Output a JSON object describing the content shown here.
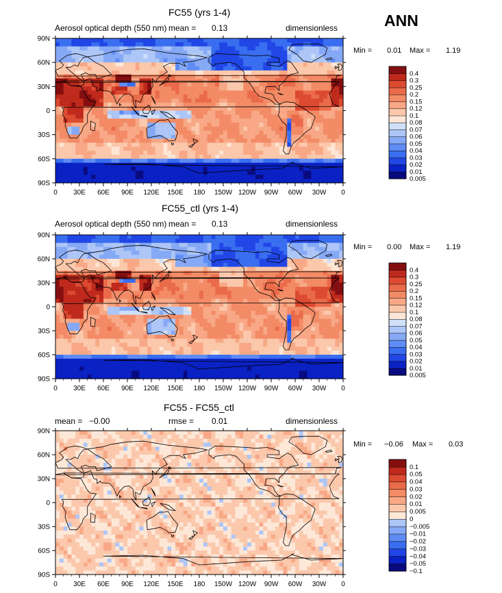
{
  "header": {
    "season": "ANN"
  },
  "colors": {
    "land": "#000000",
    "rampA": [
      "#0a0a80",
      "#0a22c4",
      "#2146e6",
      "#3a6ef0",
      "#5f8cf4",
      "#86a9f6",
      "#adc6f7",
      "#d0e0f8",
      "#fde6d6",
      "#fbc8ac",
      "#f8a886",
      "#f28b66",
      "#ea6b4a",
      "#dc4a31",
      "#bf2a1d",
      "#850f10"
    ],
    "rampD": [
      "#0a0a80",
      "#0a22c4",
      "#2146e6",
      "#3a6ef0",
      "#5f8cf4",
      "#86a9f6",
      "#adc6f7",
      "#fde8d8",
      "#fbc8ac",
      "#f8a886",
      "#f28b66",
      "#ea6b4a",
      "#dc4a31",
      "#bf2a1d",
      "#850f10"
    ]
  },
  "chart_data": [
    {
      "type": "heatmap",
      "title": "FC55 (yrs 1-4)",
      "left_label": "Aerosol optical depth (550 nm)",
      "mean_label": "mean =",
      "mean_value": "0.13",
      "units": "dimensionless",
      "min_label": "Min =",
      "min_value": "0.01",
      "max_label": "Max =",
      "max_value": "1.19",
      "x_ticks": [
        "0",
        "30E",
        "60E",
        "90E",
        "120E",
        "150E",
        "180",
        "150W",
        "120W",
        "90W",
        "60W",
        "30W",
        "0"
      ],
      "y_ticks": [
        "90N",
        "60N",
        "30N",
        "0",
        "30S",
        "60S",
        "90S"
      ],
      "colorbar_labels": [
        "0.4",
        "0.3",
        "0.25",
        "0.2",
        "0.15",
        "0.12",
        "0.1",
        "0.08",
        "0.07",
        "0.06",
        "0.05",
        "0.04",
        "0.03",
        "0.02",
        "0.01",
        "0.005"
      ]
    },
    {
      "type": "heatmap",
      "title": "FC55_ctl (yrs 1-4)",
      "left_label": "Aerosol optical depth (550 nm)",
      "mean_label": "mean =",
      "mean_value": "0.13",
      "units": "dimensionless",
      "min_label": "Min =",
      "min_value": "0.00",
      "max_label": "Max =",
      "max_value": "1.19",
      "x_ticks": [
        "0",
        "30E",
        "60E",
        "90E",
        "120E",
        "150E",
        "180",
        "150W",
        "120W",
        "90W",
        "60W",
        "30W",
        "0"
      ],
      "y_ticks": [
        "90N",
        "60N",
        "30N",
        "0",
        "30S",
        "60S",
        "90S"
      ],
      "colorbar_labels": [
        "0.4",
        "0.3",
        "0.25",
        "0.2",
        "0.15",
        "0.12",
        "0.1",
        "0.08",
        "0.07",
        "0.06",
        "0.05",
        "0.04",
        "0.03",
        "0.02",
        "0.01",
        "0.005"
      ]
    },
    {
      "type": "heatmap",
      "title": "FC55 - FC55_ctl",
      "mean_label": "mean =",
      "mean_value": "−0.00",
      "rmse_label": "rmse =",
      "rmse_value": "0.01",
      "units": "dimensionless",
      "min_label": "Min =",
      "min_value": "−0.06",
      "max_label": "Max =",
      "max_value": "0.03",
      "x_ticks": [
        "0",
        "30E",
        "60E",
        "90E",
        "120E",
        "150E",
        "180",
        "150W",
        "120W",
        "90W",
        "60W",
        "30W",
        "0"
      ],
      "y_ticks": [
        "90N",
        "60N",
        "30N",
        "0",
        "30S",
        "60S",
        "90S"
      ],
      "colorbar_labels": [
        "0.1",
        "0.05",
        "0.04",
        "0.03",
        "0.02",
        "0.01",
        "0.005",
        "0",
        "−0.005",
        "−0.01",
        "−0.02",
        "−0.03",
        "−0.04",
        "−0.05",
        "−0.1"
      ]
    }
  ]
}
